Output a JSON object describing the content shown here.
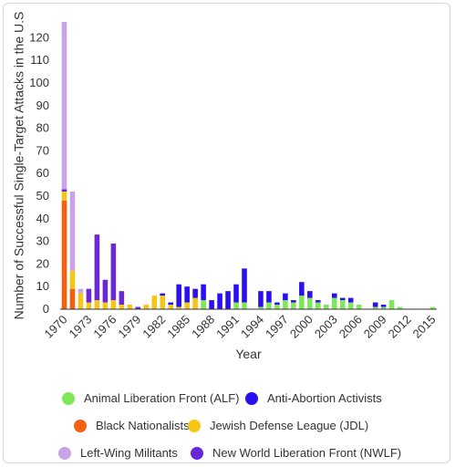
{
  "chart_data": {
    "type": "bar",
    "stacked": true,
    "title": "",
    "xlabel": "Year",
    "ylabel": "Number of Successful Single-Target Attacks in the U.S",
    "ylim": [
      0,
      127
    ],
    "yticks": [
      0,
      10,
      20,
      30,
      40,
      50,
      60,
      70,
      80,
      90,
      100,
      110,
      120
    ],
    "xticks": [
      "1970",
      "1973",
      "1976",
      "1979",
      "1982",
      "1985",
      "1988",
      "1991",
      "1994",
      "1997",
      "2000",
      "2003",
      "2006",
      "2009",
      "2012",
      "2015"
    ],
    "grid": false,
    "legend_position": "bottom",
    "categories": [
      "1970",
      "1971",
      "1972",
      "1973",
      "1974",
      "1975",
      "1976",
      "1977",
      "1978",
      "1979",
      "1980",
      "1981",
      "1982",
      "1983",
      "1984",
      "1985",
      "1986",
      "1987",
      "1988",
      "1989",
      "1990",
      "1991",
      "1992",
      "1993",
      "1994",
      "1995",
      "1996",
      "1997",
      "1998",
      "1999",
      "2000",
      "2001",
      "2002",
      "2003",
      "2004",
      "2005",
      "2006",
      "2007",
      "2008",
      "2009",
      "2010",
      "2011",
      "2012",
      "2013",
      "2014",
      "2015"
    ],
    "series": [
      {
        "name": "Animal Liberation Front (ALF)",
        "color": "#7ee85a",
        "values": [
          0,
          0,
          0,
          0,
          0,
          0,
          0,
          0,
          0,
          0,
          0,
          0,
          0,
          0,
          0,
          0,
          0,
          4,
          0,
          0,
          0,
          3,
          3,
          0,
          1,
          3,
          2,
          4,
          3,
          6,
          5,
          3,
          2,
          5,
          4,
          3,
          2,
          0,
          1,
          1,
          4,
          1,
          0,
          0,
          0,
          1
        ]
      },
      {
        "name": "Anti-Abortion Activists",
        "color": "#2a0ff0",
        "values": [
          0,
          0,
          0,
          0,
          0,
          0,
          0,
          0,
          0,
          0,
          0,
          0,
          1,
          1,
          10,
          7,
          4,
          7,
          4,
          7,
          8,
          8,
          15,
          0,
          7,
          5,
          1,
          3,
          1,
          6,
          3,
          1,
          0,
          2,
          1,
          2,
          0,
          0,
          2,
          1,
          0,
          0,
          0,
          0,
          0,
          0
        ]
      },
      {
        "name": "Black Nationalists",
        "color": "#f45f10",
        "values": [
          48,
          9,
          0,
          0,
          0,
          0,
          0,
          0,
          0,
          0,
          0,
          0,
          0,
          0,
          0,
          0,
          0,
          0,
          0,
          0,
          0,
          0,
          0,
          0,
          0,
          0,
          0,
          0,
          0,
          0,
          0,
          0,
          0,
          0,
          0,
          0,
          0,
          0,
          0,
          0,
          0,
          0,
          0,
          0,
          0,
          0
        ]
      },
      {
        "name": "Jewish Defense League (JDL)",
        "color": "#f5c518",
        "values": [
          4,
          8,
          7,
          3,
          4,
          3,
          4,
          2,
          2,
          0,
          2,
          6,
          6,
          2,
          1,
          3,
          5,
          0,
          0,
          0,
          0,
          0,
          0,
          0,
          0,
          0,
          0,
          0,
          0,
          0,
          0,
          0,
          0,
          0,
          0,
          0,
          0,
          0,
          0,
          0,
          0,
          0,
          0,
          0,
          0,
          0
        ]
      },
      {
        "name": "Left-Wing Militants",
        "color": "#c9a3e6",
        "values": [
          74,
          35,
          2,
          0,
          0,
          0,
          0,
          0,
          0,
          0,
          0,
          0,
          0,
          0,
          0,
          0,
          0,
          0,
          0,
          0,
          0,
          0,
          0,
          0,
          0,
          0,
          0,
          0,
          0,
          0,
          0,
          0,
          0,
          0,
          0,
          0,
          0,
          0,
          0,
          0,
          0,
          0,
          0,
          0,
          0,
          0
        ]
      },
      {
        "name": "New World Liberation Front (NWLF)",
        "color": "#6a27d8",
        "values": [
          1,
          0,
          0,
          6,
          29,
          10,
          25,
          6,
          0,
          1,
          0,
          0,
          0,
          0,
          0,
          0,
          0,
          0,
          0,
          0,
          0,
          0,
          0,
          0,
          0,
          0,
          0,
          0,
          0,
          0,
          0,
          0,
          0,
          0,
          0,
          0,
          0,
          0,
          0,
          0,
          0,
          0,
          0,
          0,
          0,
          0
        ]
      }
    ]
  }
}
